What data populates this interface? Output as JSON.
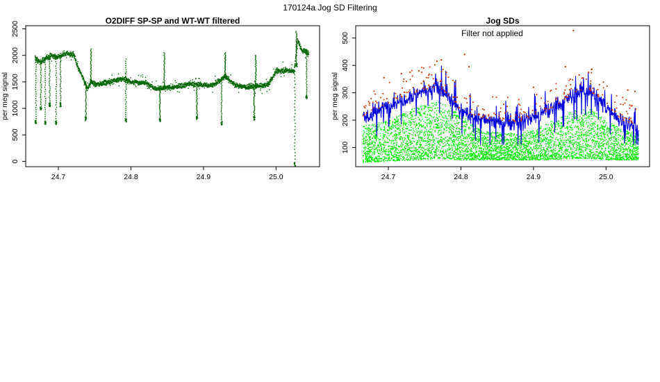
{
  "figure": {
    "supertitle": "170124a   Jog SD Filtering"
  },
  "chart_data": [
    {
      "type": "scatter",
      "title": "O2DIFF SP-SP and WT-WT filtered",
      "xlabel": "",
      "ylabel": "per meg signal",
      "xlim": [
        24.655,
        25.06
      ],
      "ylim": [
        -100,
        2560
      ],
      "xticks": [
        24.7,
        24.8,
        24.9,
        25.0
      ],
      "xtick_labels": [
        "24.7",
        "24.8",
        "24.9",
        "25.0"
      ],
      "yticks": [
        0,
        500,
        1000,
        1500,
        2000,
        2500
      ],
      "ytick_labels": [
        "0",
        "500",
        "1000",
        "1500",
        "2000",
        "2500"
      ],
      "series": [
        {
          "name": "O2DIFF",
          "color": "#006400",
          "baseline_profile": {
            "x": [
              24.668,
              24.675,
              24.683,
              24.69,
              24.7,
              24.712,
              24.722,
              24.726,
              24.733,
              24.74,
              24.745,
              24.752,
              24.77,
              24.79,
              24.8,
              24.82,
              24.835,
              24.845,
              24.86,
              24.88,
              24.895,
              24.905,
              24.915,
              24.93,
              24.945,
              24.96,
              24.972,
              24.98,
              24.99,
              25.0,
              25.015,
              25.025,
              25.03,
              25.035,
              25.045
            ],
            "y": [
              1950,
              1870,
              1950,
              1990,
              1970,
              2040,
              2000,
              1800,
              1600,
              1370,
              1500,
              1450,
              1500,
              1560,
              1500,
              1480,
              1370,
              1380,
              1400,
              1460,
              1450,
              1430,
              1450,
              1600,
              1430,
              1400,
              1420,
              1420,
              1460,
              1700,
              1720,
              1700,
              2300,
              2100,
              2050
            ],
            "noise": 45
          },
          "spikes": [
            {
              "x": 24.669,
              "top": 1950,
              "bottom": 720
            },
            {
              "x": 24.676,
              "top": 1900,
              "bottom": 980
            },
            {
              "x": 24.682,
              "top": 1950,
              "bottom": 720
            },
            {
              "x": 24.688,
              "top": 1980,
              "bottom": 1050
            },
            {
              "x": 24.697,
              "top": 1970,
              "bottom": 720
            },
            {
              "x": 24.703,
              "top": 2000,
              "bottom": 1050
            },
            {
              "x": 24.738,
              "top": 1500,
              "bottom": 790
            },
            {
              "x": 24.745,
              "top": 2120,
              "bottom": 1500
            },
            {
              "x": 24.793,
              "top": 1930,
              "bottom": 760
            },
            {
              "x": 24.84,
              "top": 1400,
              "bottom": 770
            },
            {
              "x": 24.846,
              "top": 2050,
              "bottom": 1380
            },
            {
              "x": 24.891,
              "top": 1450,
              "bottom": 800
            },
            {
              "x": 24.925,
              "top": 1550,
              "bottom": 700
            },
            {
              "x": 24.93,
              "top": 2050,
              "bottom": 1600
            },
            {
              "x": 24.97,
              "top": 1400,
              "bottom": 800
            },
            {
              "x": 24.972,
              "top": 2000,
              "bottom": 1400
            },
            {
              "x": 25.026,
              "top": 1700,
              "bottom": -80
            },
            {
              "x": 25.028,
              "top": 2450,
              "bottom": 1800
            },
            {
              "x": 25.042,
              "top": 2100,
              "bottom": 1200
            }
          ]
        }
      ]
    },
    {
      "type": "scatter",
      "title": "Jog SDs",
      "annotation": "Filter not applied",
      "xlabel": "",
      "ylabel": "per meg signal",
      "xlim": [
        24.655,
        25.06
      ],
      "ylim": [
        30,
        545
      ],
      "xticks": [
        24.7,
        24.8,
        24.9,
        25.0
      ],
      "xtick_labels": [
        "24.7",
        "24.8",
        "24.9",
        "25.0"
      ],
      "yticks": [
        100,
        200,
        300,
        400,
        500
      ],
      "ytick_labels": [
        "100",
        "200",
        "300",
        "400",
        "500"
      ],
      "series": [
        {
          "name": "Jog SD points",
          "color": "#00ee00",
          "envelope": {
            "x": [
              24.665,
              24.7,
              24.74,
              24.77,
              24.8,
              24.83,
              24.88,
              24.92,
              24.96,
              24.98,
              25.0,
              25.02,
              25.045
            ],
            "low": [
              45,
              50,
              55,
              60,
              55,
              55,
              55,
              55,
              60,
              60,
              55,
              55,
              55
            ],
            "high": [
              180,
              200,
              250,
              270,
              220,
              160,
              150,
              190,
              240,
              240,
              200,
              170,
              150
            ]
          }
        },
        {
          "name": "Jog SD max",
          "color": "#0000dd",
          "profile": {
            "x": [
              24.665,
              24.7,
              24.74,
              24.77,
              24.8,
              24.83,
              24.88,
              24.92,
              24.96,
              24.975,
              25.0,
              25.02,
              25.045
            ],
            "y": [
              200,
              255,
              300,
              320,
              230,
              200,
              190,
              230,
              300,
              310,
              250,
              200,
              170
            ]
          }
        },
        {
          "name": "Jog SD outliers",
          "color": "#cc3300",
          "points": [
            {
              "x": 24.767,
              "y": 415
            },
            {
              "x": 24.773,
              "y": 420
            },
            {
              "x": 24.805,
              "y": 440
            },
            {
              "x": 24.811,
              "y": 395
            },
            {
              "x": 24.955,
              "y": 527
            },
            {
              "x": 24.944,
              "y": 395
            },
            {
              "x": 24.98,
              "y": 385
            },
            {
              "x": 24.963,
              "y": 365
            },
            {
              "x": 24.718,
              "y": 370
            },
            {
              "x": 24.73,
              "y": 375
            },
            {
              "x": 24.742,
              "y": 380
            },
            {
              "x": 24.694,
              "y": 355
            },
            {
              "x": 24.9,
              "y": 320
            },
            {
              "x": 25.03,
              "y": 310
            },
            {
              "x": 25.04,
              "y": 305
            }
          ]
        }
      ]
    }
  ]
}
